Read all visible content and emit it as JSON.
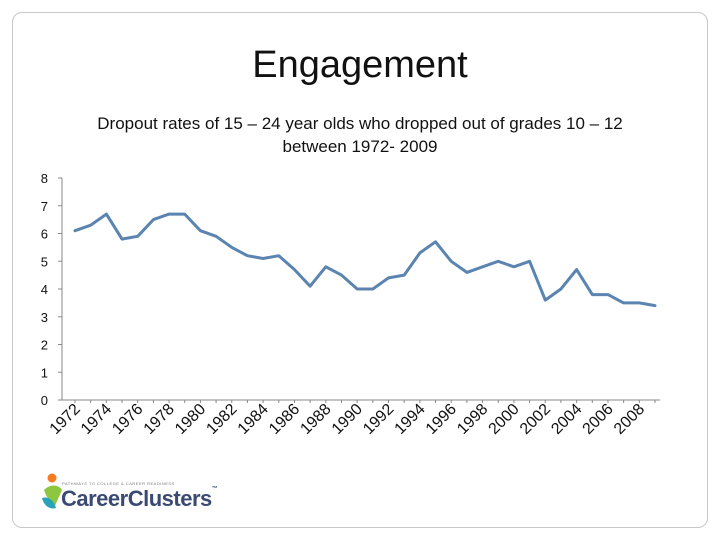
{
  "slide": {
    "heading": "Engagement",
    "logo": {
      "tagline": "PATHWAYS TO COLLEGE & CAREER READINESS",
      "name": "CareerClusters",
      "mark": "™",
      "colors": {
        "orange": "#f47b20",
        "green": "#8dc63f",
        "teal": "#2aa3b8",
        "text": "#3b4a72"
      }
    }
  },
  "chart_data": {
    "type": "line",
    "title": "Dropout rates of 15 – 24 year olds who dropped out of grades 10 – 12 between 1972- 2009",
    "xlabel": "",
    "ylabel": "",
    "ylim": [
      0,
      8
    ],
    "yticks": [
      "0",
      "1",
      "2",
      "3",
      "4",
      "5",
      "6",
      "7",
      "8"
    ],
    "grid": false,
    "legend": "none",
    "line_color": "#5b84b1",
    "x": [
      1972,
      1973,
      1974,
      1975,
      1976,
      1977,
      1978,
      1979,
      1980,
      1981,
      1982,
      1983,
      1984,
      1985,
      1986,
      1987,
      1988,
      1989,
      1990,
      1991,
      1992,
      1993,
      1994,
      1995,
      1996,
      1997,
      1998,
      1999,
      2000,
      2001,
      2002,
      2003,
      2004,
      2005,
      2006,
      2007,
      2008,
      2009
    ],
    "xtick_labels": [
      "1972",
      "1974",
      "1976",
      "1978",
      "1980",
      "1982",
      "1984",
      "1986",
      "1988",
      "1990",
      "1992",
      "1994",
      "1996",
      "1998",
      "2000",
      "2002",
      "2004",
      "2006",
      "2008"
    ],
    "series": [
      {
        "values": [
          6.1,
          6.3,
          6.7,
          5.8,
          5.9,
          6.5,
          6.7,
          6.7,
          6.1,
          5.9,
          5.5,
          5.2,
          5.1,
          5.2,
          4.7,
          4.1,
          4.8,
          4.5,
          4.0,
          4.0,
          4.4,
          4.5,
          5.3,
          5.7,
          5.0,
          4.6,
          4.8,
          5.0,
          4.8,
          5.0,
          3.6,
          4.0,
          4.7,
          3.8,
          3.8,
          3.5,
          3.5,
          3.4
        ]
      }
    ]
  }
}
